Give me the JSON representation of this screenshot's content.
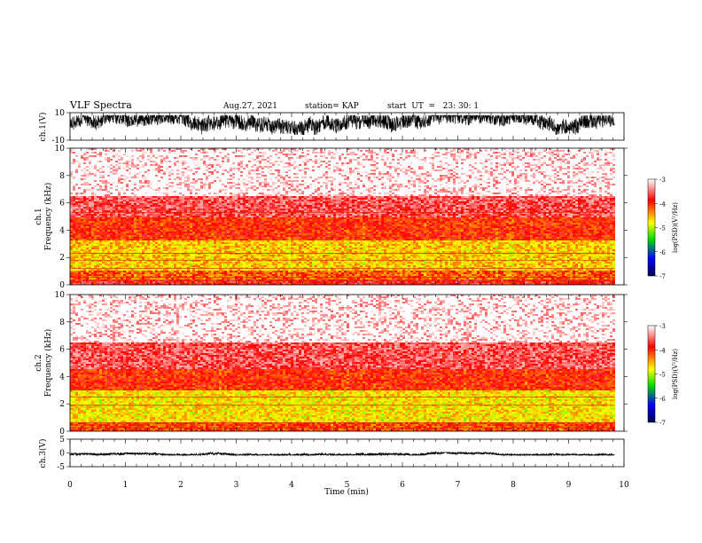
{
  "header": {
    "title": "VLF Spectra",
    "date": "Aug.27, 2021",
    "station": "station= KAP",
    "start": "start  UT  =   23: 30: 1"
  },
  "colorbar": {
    "label": "log(PSD)(V²/Hz)",
    "ticks": [
      "-3",
      "-4",
      "-5",
      "-6",
      "-7"
    ],
    "stops": [
      "#ffffff",
      "#ff0000",
      "#ffff00",
      "#00cc00",
      "#0000ff",
      "#000040"
    ]
  },
  "chart_data": [
    {
      "type": "line",
      "name": "ch1-waveform",
      "ylabel": "ch.1(V)",
      "ylim": [
        -10,
        10
      ],
      "yticks": [
        "10",
        "-10"
      ],
      "xlim": [
        0,
        10
      ],
      "x_end_min": 9.83,
      "amplitude_range_V": [
        -6,
        8
      ],
      "color": "#000000"
    },
    {
      "type": "heatmap",
      "name": "ch1-spectrogram",
      "ylabel": "ch.1\nFrequency (kHz)",
      "ylim": [
        0,
        10
      ],
      "yticks": [
        "0",
        "2",
        "4",
        "6",
        "8",
        "10"
      ],
      "xlim": [
        0,
        10
      ],
      "x_end_min": 9.83,
      "bands_kHz": [
        {
          "from": 0.0,
          "to": 0.4,
          "log_psd": -3.8
        },
        {
          "from": 0.4,
          "to": 1.0,
          "log_psd": -4.2
        },
        {
          "from": 1.0,
          "to": 3.2,
          "log_psd": -4.6
        },
        {
          "from": 3.2,
          "to": 5.0,
          "log_psd": -4.0
        },
        {
          "from": 5.0,
          "to": 6.5,
          "log_psd": -3.6
        },
        {
          "from": 6.5,
          "to": 10.0,
          "log_psd": -3.2
        }
      ],
      "tonal_lines_kHz": [
        0.3,
        0.55,
        1.2,
        1.8,
        2.3,
        5.3
      ]
    },
    {
      "type": "heatmap",
      "name": "ch2-spectrogram",
      "ylabel": "ch.2\nFrequency (kHz)",
      "ylim": [
        0,
        10
      ],
      "yticks": [
        "0",
        "2",
        "4",
        "6",
        "8",
        "10"
      ],
      "xlim": [
        0,
        10
      ],
      "x_end_min": 9.83,
      "bands_kHz": [
        {
          "from": 0.0,
          "to": 0.6,
          "log_psd": -4.1
        },
        {
          "from": 0.6,
          "to": 3.0,
          "log_psd": -4.7
        },
        {
          "from": 3.0,
          "to": 4.5,
          "log_psd": -4.0
        },
        {
          "from": 4.5,
          "to": 6.5,
          "log_psd": -3.6
        },
        {
          "from": 6.5,
          "to": 10.0,
          "log_psd": -3.2
        }
      ],
      "tonal_lines_kHz": [
        0.25,
        0.6,
        1.9,
        2.5
      ]
    },
    {
      "type": "line",
      "name": "ch3-waveform",
      "ylabel": "ch.3(V)",
      "ylim": [
        -5,
        5
      ],
      "yticks": [
        "5",
        "0",
        "-5"
      ],
      "xlim": [
        0,
        10
      ],
      "x_end_min": 9.83,
      "amplitude_range_V": [
        -0.8,
        0.2
      ],
      "color": "#000000"
    }
  ],
  "xaxis": {
    "label": "Time (min)",
    "ticks": [
      "0",
      "1",
      "2",
      "3",
      "4",
      "5",
      "6",
      "7",
      "8",
      "9",
      "10"
    ],
    "xlim": [
      0,
      10
    ]
  }
}
